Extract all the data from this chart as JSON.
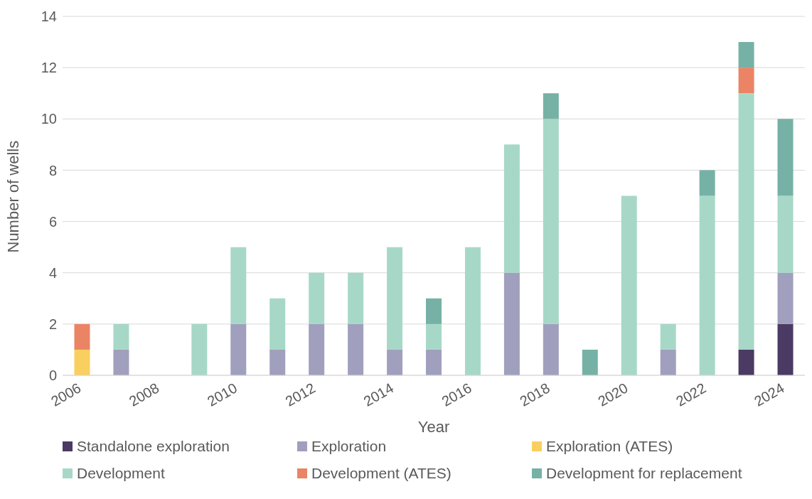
{
  "chart_data": {
    "type": "bar",
    "stacked": true,
    "xlabel": "Year",
    "ylabel": "Number of wells",
    "categories": [
      "2006",
      null,
      "2008",
      null,
      "2010",
      null,
      "2012",
      null,
      "2014",
      null,
      "2016",
      null,
      "2018",
      null,
      "2020",
      null,
      "2022",
      null,
      "2024"
    ],
    "series": [
      {
        "name": "Standalone exploration",
        "color": "#4b3a63",
        "values": [
          0,
          0,
          0,
          0,
          0,
          0,
          0,
          0,
          0,
          0,
          0,
          0,
          0,
          0,
          0,
          0,
          0,
          1,
          2
        ]
      },
      {
        "name": "Exploration",
        "color": "#a09fbd",
        "values": [
          0,
          1,
          0,
          0,
          2,
          1,
          2,
          2,
          1,
          1,
          0,
          4,
          2,
          0,
          0,
          1,
          0,
          0,
          2
        ]
      },
      {
        "name": "Exploration (ATES)",
        "color": "#f9cf5f",
        "values": [
          1,
          0,
          0,
          0,
          0,
          0,
          0,
          0,
          0,
          0,
          0,
          0,
          0,
          0,
          0,
          0,
          0,
          0,
          0
        ]
      },
      {
        "name": "Development",
        "color": "#a7d8c7",
        "values": [
          0,
          1,
          0,
          2,
          3,
          2,
          2,
          2,
          4,
          1,
          5,
          5,
          8,
          0,
          7,
          1,
          7,
          10,
          3
        ]
      },
      {
        "name": "Development (ATES)",
        "color": "#ea8465",
        "values": [
          1,
          0,
          0,
          0,
          0,
          0,
          0,
          0,
          0,
          0,
          0,
          0,
          0,
          0,
          0,
          0,
          0,
          1,
          0
        ]
      },
      {
        "name": "Development for replacement",
        "color": "#76b1a6",
        "values": [
          0,
          0,
          0,
          0,
          0,
          0,
          0,
          0,
          0,
          1,
          0,
          0,
          1,
          1,
          0,
          0,
          1,
          1,
          3
        ]
      }
    ],
    "ylim": [
      0,
      14
    ],
    "yticks": [
      0,
      2,
      4,
      6,
      8,
      10,
      12,
      14
    ],
    "grid": "y",
    "legend": "bottom"
  }
}
